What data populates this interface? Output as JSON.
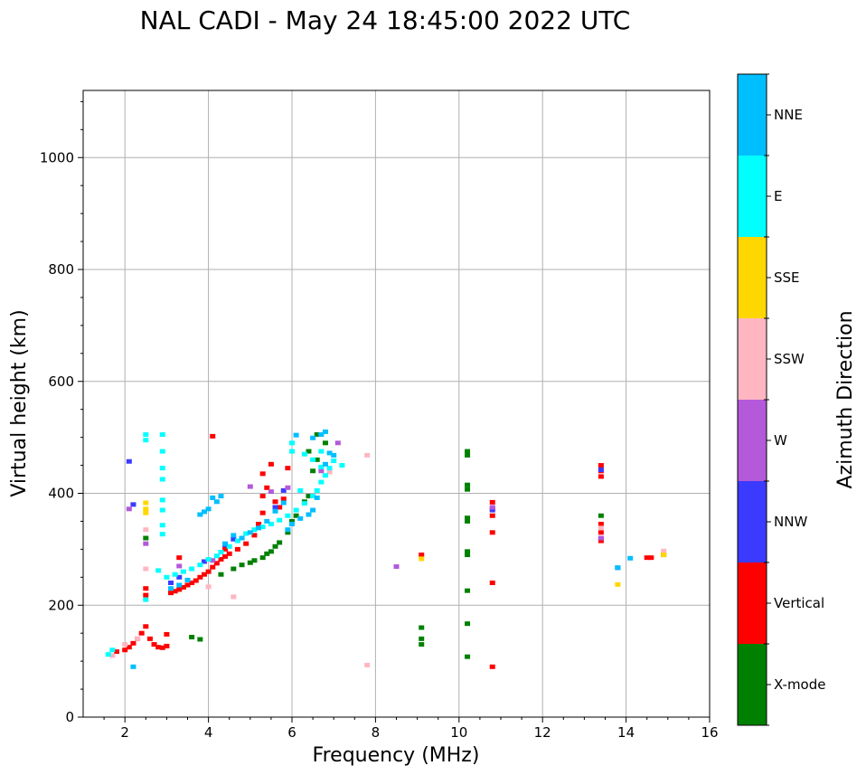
{
  "chart_data": {
    "type": "scatter",
    "title": "NAL CADI - May 24 18:45:00 2022 UTC",
    "xlabel": "Frequency (MHz)",
    "ylabel": "Virtual height (km)",
    "xlim": [
      1,
      16
    ],
    "ylim": [
      0,
      1120
    ],
    "xticks": [
      2,
      4,
      6,
      8,
      10,
      12,
      14,
      16
    ],
    "xtick_labels": [
      "2",
      "4",
      "6",
      "8",
      "10",
      "12",
      "14",
      "16"
    ],
    "yticks": [
      0,
      200,
      400,
      600,
      800,
      1000
    ],
    "ytick_labels": [
      "0",
      "200",
      "400",
      "600",
      "800",
      "1000"
    ],
    "grid": true,
    "colorbar": {
      "label": "Azimuth Direction",
      "categories": [
        {
          "name": "X-mode",
          "color": "#008000"
        },
        {
          "name": "Vertical",
          "color": "#ff0000"
        },
        {
          "name": "NNW",
          "color": "#3b3bff"
        },
        {
          "name": "W",
          "color": "#b359d9"
        },
        {
          "name": "SSW",
          "color": "#ffb6c1"
        },
        {
          "name": "SSE",
          "color": "#ffd700"
        },
        {
          "name": "E",
          "color": "#00ffff"
        },
        {
          "name": "NNE",
          "color": "#00bfff"
        }
      ]
    },
    "series": [
      {
        "name": "X-mode",
        "points": [
          [
            2.5,
            320
          ],
          [
            3.6,
            143
          ],
          [
            3.8,
            139
          ],
          [
            4.3,
            255
          ],
          [
            4.6,
            265
          ],
          [
            4.8,
            272
          ],
          [
            5.0,
            276
          ],
          [
            5.1,
            280
          ],
          [
            5.3,
            285
          ],
          [
            5.4,
            292
          ],
          [
            5.5,
            296
          ],
          [
            5.6,
            305
          ],
          [
            5.7,
            312
          ],
          [
            5.9,
            330
          ],
          [
            6.0,
            350
          ],
          [
            6.1,
            360
          ],
          [
            6.3,
            385
          ],
          [
            6.4,
            395
          ],
          [
            6.5,
            440
          ],
          [
            6.6,
            460
          ],
          [
            6.4,
            475
          ],
          [
            6.6,
            505
          ],
          [
            6.8,
            490
          ],
          [
            9.1,
            160
          ],
          [
            9.1,
            140
          ],
          [
            9.1,
            130
          ],
          [
            10.2,
            475
          ],
          [
            10.2,
            468
          ],
          [
            10.2,
            415
          ],
          [
            10.2,
            407
          ],
          [
            10.2,
            356
          ],
          [
            10.2,
            350
          ],
          [
            10.2,
            296
          ],
          [
            10.2,
            290
          ],
          [
            10.2,
            226
          ],
          [
            10.2,
            167
          ],
          [
            10.2,
            108
          ],
          [
            13.4,
            360
          ],
          [
            14.9,
            290
          ]
        ]
      },
      {
        "name": "Vertical",
        "points": [
          [
            1.8,
            117
          ],
          [
            2.0,
            120
          ],
          [
            2.1,
            125
          ],
          [
            2.2,
            132
          ],
          [
            2.3,
            140
          ],
          [
            2.4,
            150
          ],
          [
            2.5,
            162
          ],
          [
            2.6,
            140
          ],
          [
            2.7,
            130
          ],
          [
            2.8,
            125
          ],
          [
            2.9,
            124
          ],
          [
            3.0,
            127
          ],
          [
            3.0,
            148
          ],
          [
            2.5,
            230
          ],
          [
            2.5,
            218
          ],
          [
            3.1,
            222
          ],
          [
            3.2,
            225
          ],
          [
            3.3,
            228
          ],
          [
            3.4,
            232
          ],
          [
            3.5,
            236
          ],
          [
            3.6,
            240
          ],
          [
            3.7,
            244
          ],
          [
            3.8,
            250
          ],
          [
            3.9,
            255
          ],
          [
            4.0,
            260
          ],
          [
            4.1,
            268
          ],
          [
            4.2,
            275
          ],
          [
            4.3,
            282
          ],
          [
            4.4,
            287
          ],
          [
            4.5,
            292
          ],
          [
            4.7,
            300
          ],
          [
            4.9,
            310
          ],
          [
            5.1,
            325
          ],
          [
            5.2,
            345
          ],
          [
            5.3,
            365
          ],
          [
            5.3,
            395
          ],
          [
            5.4,
            410
          ],
          [
            5.6,
            385
          ],
          [
            5.7,
            375
          ],
          [
            5.8,
            390
          ],
          [
            5.9,
            445
          ],
          [
            5.5,
            452
          ],
          [
            5.3,
            435
          ],
          [
            4.1,
            502
          ],
          [
            3.3,
            285
          ],
          [
            4.4,
            300
          ],
          [
            9.1,
            290
          ],
          [
            10.8,
            384
          ],
          [
            10.8,
            372
          ],
          [
            10.8,
            360
          ],
          [
            10.8,
            330
          ],
          [
            10.8,
            240
          ],
          [
            10.8,
            90
          ],
          [
            13.4,
            450
          ],
          [
            13.4,
            440
          ],
          [
            13.4,
            430
          ],
          [
            13.4,
            345
          ],
          [
            13.4,
            330
          ],
          [
            13.4,
            315
          ],
          [
            14.5,
            285
          ],
          [
            14.6,
            285
          ]
        ]
      },
      {
        "name": "NNW",
        "points": [
          [
            2.1,
            457
          ],
          [
            2.2,
            380
          ],
          [
            3.1,
            240
          ],
          [
            3.3,
            250
          ],
          [
            3.9,
            278
          ],
          [
            4.4,
            308
          ],
          [
            4.6,
            318
          ],
          [
            5.6,
            375
          ],
          [
            5.8,
            405
          ],
          [
            10.8,
            370
          ],
          [
            13.4,
            442
          ],
          [
            13.4,
            320
          ],
          [
            13.8,
            267
          ]
        ]
      },
      {
        "name": "W",
        "points": [
          [
            2.1,
            372
          ],
          [
            2.5,
            310
          ],
          [
            3.3,
            270
          ],
          [
            4.1,
            280
          ],
          [
            5.0,
            412
          ],
          [
            5.5,
            403
          ],
          [
            5.9,
            410
          ],
          [
            6.7,
            440
          ],
          [
            7.1,
            490
          ],
          [
            8.5,
            269
          ],
          [
            10.8,
            375
          ],
          [
            13.4,
            320
          ]
        ]
      },
      {
        "name": "SSW",
        "points": [
          [
            1.7,
            110
          ],
          [
            2.0,
            130
          ],
          [
            2.5,
            335
          ],
          [
            2.5,
            265
          ],
          [
            2.3,
            140
          ],
          [
            4.6,
            215
          ],
          [
            4.0,
            233
          ],
          [
            6.9,
            438
          ],
          [
            7.8,
            468
          ],
          [
            7.8,
            93
          ],
          [
            13.4,
            338
          ],
          [
            14.9,
            297
          ]
        ]
      },
      {
        "name": "SSE",
        "points": [
          [
            2.5,
            383
          ],
          [
            2.5,
            372
          ],
          [
            2.5,
            365
          ],
          [
            9.1,
            283
          ],
          [
            13.8,
            237
          ],
          [
            14.9,
            290
          ]
        ]
      },
      {
        "name": "E",
        "points": [
          [
            1.6,
            112
          ],
          [
            1.7,
            120
          ],
          [
            2.5,
            505
          ],
          [
            2.5,
            495
          ],
          [
            2.5,
            210
          ],
          [
            2.9,
            505
          ],
          [
            2.9,
            475
          ],
          [
            2.9,
            445
          ],
          [
            2.9,
            425
          ],
          [
            2.9,
            388
          ],
          [
            2.9,
            370
          ],
          [
            2.9,
            343
          ],
          [
            2.9,
            327
          ],
          [
            2.8,
            262
          ],
          [
            3.0,
            250
          ],
          [
            3.2,
            255
          ],
          [
            3.4,
            260
          ],
          [
            3.6,
            265
          ],
          [
            3.8,
            272
          ],
          [
            4.0,
            282
          ],
          [
            4.2,
            288
          ],
          [
            4.3,
            295
          ],
          [
            4.5,
            305
          ],
          [
            4.7,
            315
          ],
          [
            4.9,
            328
          ],
          [
            5.1,
            335
          ],
          [
            5.3,
            340
          ],
          [
            5.5,
            345
          ],
          [
            5.7,
            352
          ],
          [
            5.9,
            360
          ],
          [
            6.1,
            370
          ],
          [
            6.3,
            382
          ],
          [
            6.5,
            395
          ],
          [
            6.6,
            405
          ],
          [
            6.7,
            420
          ],
          [
            6.8,
            432
          ],
          [
            6.9,
            445
          ],
          [
            7.0,
            458
          ],
          [
            7.2,
            450
          ],
          [
            6.7,
            475
          ],
          [
            6.0,
            490
          ],
          [
            6.0,
            475
          ],
          [
            6.3,
            470
          ],
          [
            6.5,
            460
          ],
          [
            6.7,
            447
          ],
          [
            6.2,
            405
          ]
        ]
      },
      {
        "name": "NNE",
        "points": [
          [
            2.2,
            90
          ],
          [
            3.1,
            230
          ],
          [
            3.3,
            236
          ],
          [
            3.5,
            245
          ],
          [
            3.8,
            362
          ],
          [
            3.9,
            367
          ],
          [
            4.0,
            372
          ],
          [
            4.1,
            392
          ],
          [
            4.2,
            385
          ],
          [
            4.3,
            395
          ],
          [
            4.4,
            310
          ],
          [
            4.6,
            325
          ],
          [
            4.8,
            320
          ],
          [
            5.0,
            330
          ],
          [
            5.2,
            338
          ],
          [
            5.4,
            350
          ],
          [
            5.6,
            368
          ],
          [
            5.8,
            383
          ],
          [
            5.9,
            335
          ],
          [
            6.0,
            345
          ],
          [
            6.2,
            355
          ],
          [
            6.4,
            362
          ],
          [
            6.5,
            370
          ],
          [
            6.6,
            392
          ],
          [
            6.7,
            505
          ],
          [
            6.9,
            472
          ],
          [
            7.0,
            468
          ],
          [
            6.8,
            452
          ],
          [
            6.1,
            504
          ],
          [
            6.5,
            499
          ],
          [
            6.8,
            510
          ],
          [
            13.8,
            267
          ],
          [
            14.1,
            284
          ]
        ]
      }
    ]
  }
}
